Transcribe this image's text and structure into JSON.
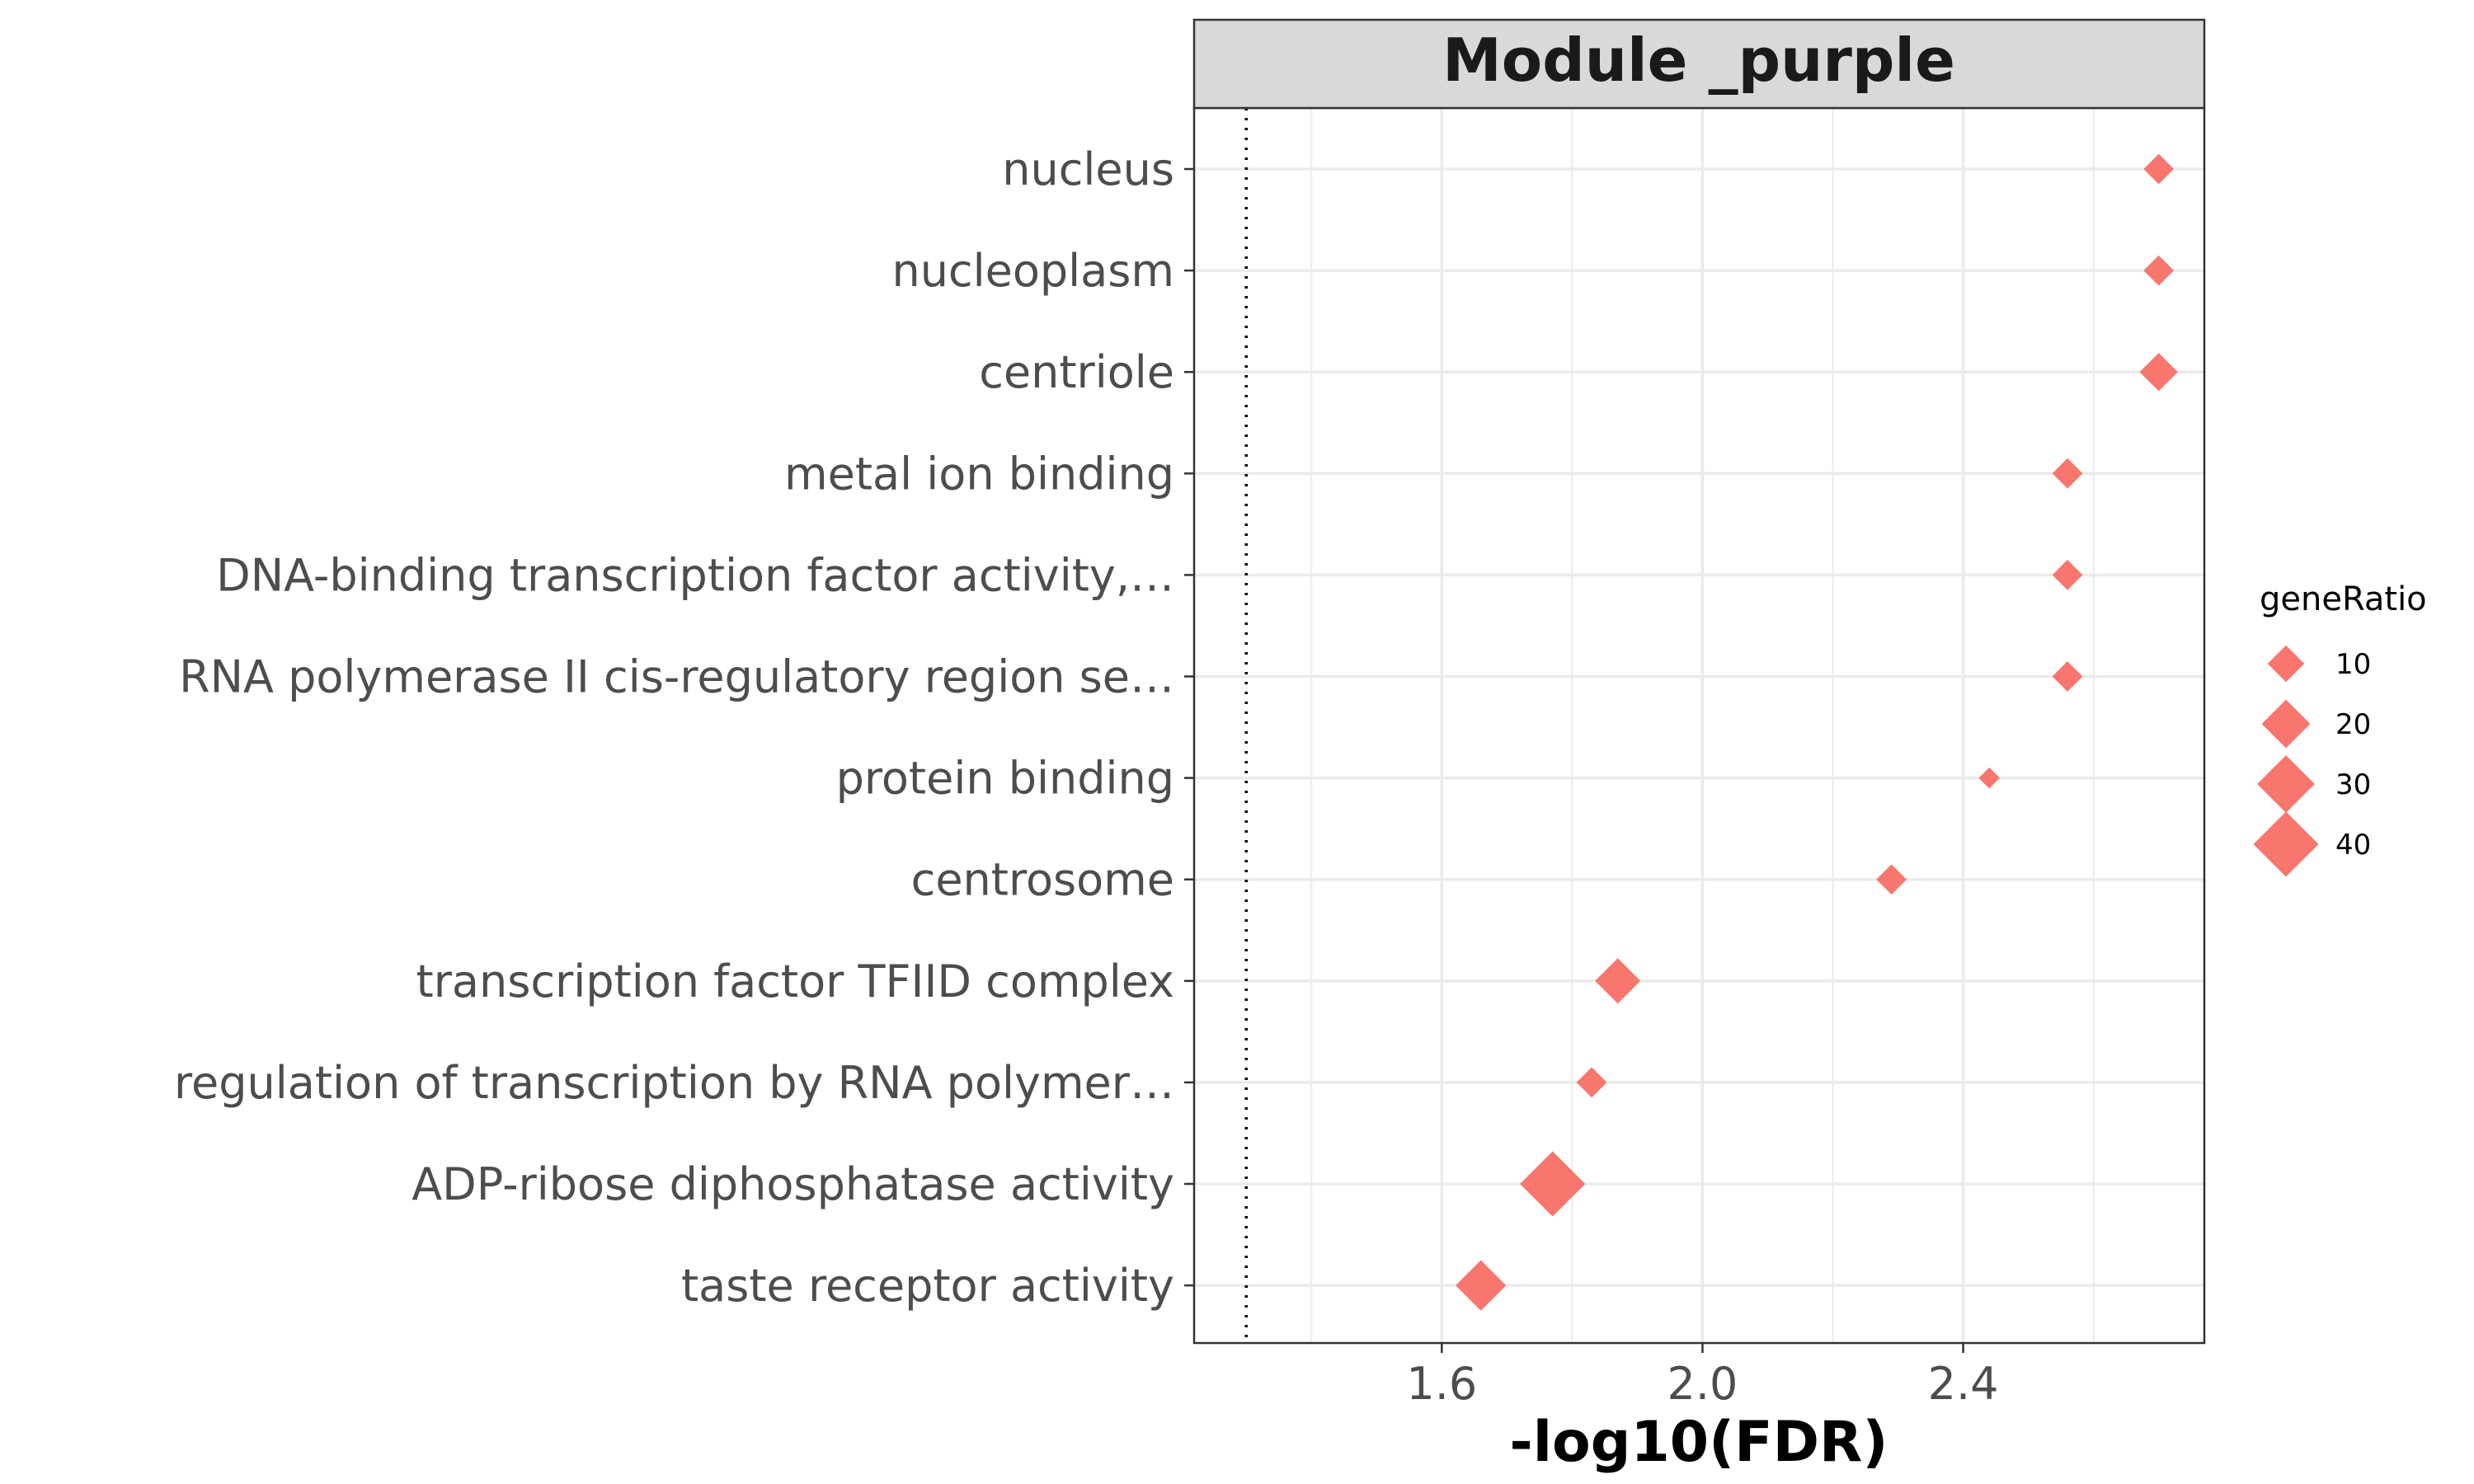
{
  "chart_data": {
    "type": "scatter",
    "title": "Module _purple",
    "xlabel": "-log10(FDR)",
    "ylabel": "",
    "xlim": [
      1.22,
      2.77
    ],
    "x_ticks": [
      1.6,
      2.0,
      2.4
    ],
    "x_tick_labels": [
      "1.6",
      "2.0",
      "2.4"
    ],
    "reference_line_x": 1.3,
    "grid": true,
    "marker": "diamond",
    "color": "#F8766D",
    "categories": [
      "nucleus",
      "nucleoplasm",
      "centriole",
      "metal ion binding",
      "DNA-binding transcription factor activity,…",
      "RNA polymerase II cis-regulatory region se…",
      "protein binding",
      "centrosome",
      "transcription factor TFIID complex",
      "regulation of transcription by RNA polymer…",
      "ADP-ribose diphosphatase activity",
      "taste receptor activity"
    ],
    "points": [
      {
        "label": "nucleus",
        "x": 2.7,
        "geneRatio": 6
      },
      {
        "label": "nucleoplasm",
        "x": 2.7,
        "geneRatio": 6
      },
      {
        "label": "centriole",
        "x": 2.7,
        "geneRatio": 11
      },
      {
        "label": "metal ion binding",
        "x": 2.56,
        "geneRatio": 6
      },
      {
        "label": "DNA-binding transcription factor activity,…",
        "x": 2.56,
        "geneRatio": 6
      },
      {
        "label": "RNA polymerase II cis-regulatory region se…",
        "x": 2.56,
        "geneRatio": 6
      },
      {
        "label": "protein binding",
        "x": 2.44,
        "geneRatio": 2
      },
      {
        "label": "centrosome",
        "x": 2.29,
        "geneRatio": 6
      },
      {
        "label": "transcription factor TFIID complex",
        "x": 1.87,
        "geneRatio": 17
      },
      {
        "label": "regulation of transcription by RNA polymer…",
        "x": 1.83,
        "geneRatio": 6
      },
      {
        "label": "ADP-ribose diphosphatase activity",
        "x": 1.77,
        "geneRatio": 40
      },
      {
        "label": "taste receptor activity",
        "x": 1.66,
        "geneRatio": 22
      }
    ],
    "legend": {
      "title": "geneRatio",
      "placement": "right",
      "entries": [
        {
          "label": "10",
          "value": 10
        },
        {
          "label": "20",
          "value": 20
        },
        {
          "label": "30",
          "value": 30
        },
        {
          "label": "40",
          "value": 40
        }
      ]
    }
  }
}
